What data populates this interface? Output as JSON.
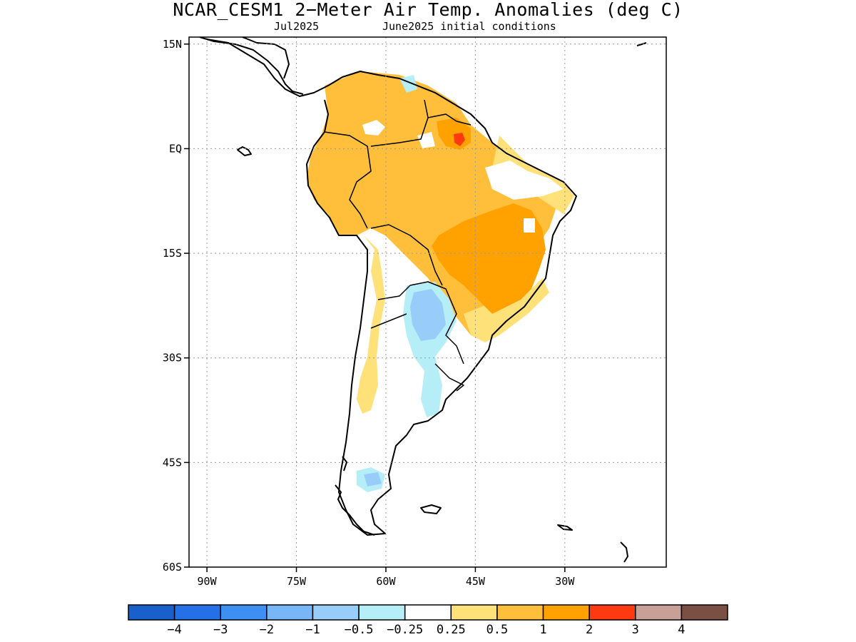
{
  "title": "NCAR_CESM1 2−Meter Air Temp. Anomalies (deg C)",
  "subtitle_left": "Jul2025",
  "subtitle_right": "June2025 initial conditions",
  "map": {
    "lon_range": [
      -93,
      -13
    ],
    "lat_range": [
      -60,
      16
    ],
    "lat_ticks": [
      {
        "value": 15,
        "label": "15N"
      },
      {
        "value": 0,
        "label": "EQ"
      },
      {
        "value": -15,
        "label": "15S"
      },
      {
        "value": -30,
        "label": "30S"
      },
      {
        "value": -45,
        "label": "45S"
      },
      {
        "value": -60,
        "label": "60S"
      }
    ],
    "lon_ticks": [
      {
        "value": -90,
        "label": "90W"
      },
      {
        "value": -75,
        "label": "75W"
      },
      {
        "value": -60,
        "label": "60W"
      },
      {
        "value": -45,
        "label": "45W"
      },
      {
        "value": -30,
        "label": "30W"
      }
    ],
    "grid": "dotted"
  },
  "colorbar": {
    "colors": [
      "#1a60cc",
      "#2470e6",
      "#3d8ff2",
      "#78b6f8",
      "#97cdf8",
      "#b6eef8",
      "#ffffff",
      "#ffe17a",
      "#ffbf3a",
      "#ffa200",
      "#ff3a10",
      "#c8a098",
      "#7a5045"
    ],
    "labels": [
      "−4",
      "−3",
      "−2",
      "−1",
      "−0.5",
      "−0.25",
      "0.25",
      "0.5",
      "1",
      "2",
      "3",
      "4"
    ]
  }
}
